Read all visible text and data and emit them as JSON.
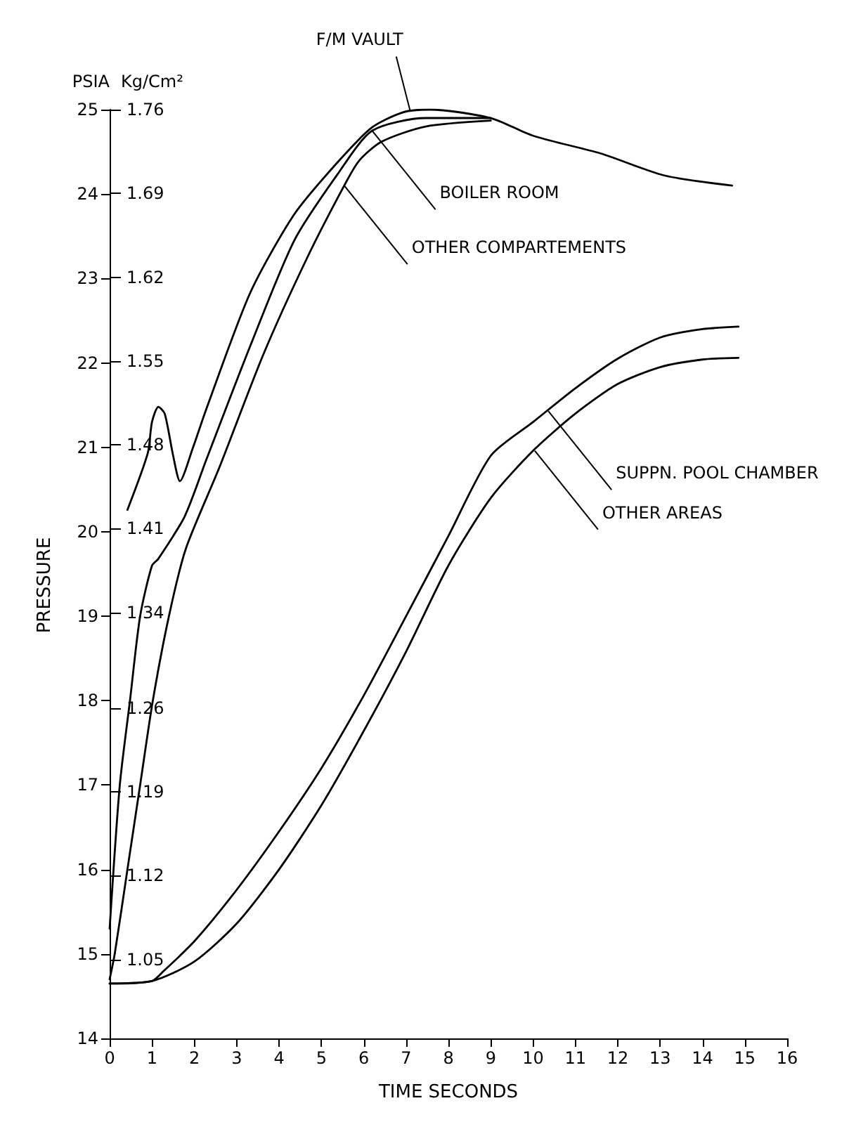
{
  "chart_data": {
    "type": "line",
    "xlabel": "TIME SECONDS",
    "ylabel": "PSIA",
    "y2label": "Kg/Cm²",
    "xlim": [
      0,
      16
    ],
    "xticks": [
      0,
      1,
      2,
      3,
      4,
      5,
      6,
      7,
      8,
      9,
      10,
      11,
      12,
      13,
      14,
      15,
      16
    ],
    "ylim": [
      14,
      25
    ],
    "yticks": [
      14,
      15,
      16,
      17,
      18,
      19,
      20,
      21,
      22,
      23,
      24,
      25
    ],
    "y2lim": [
      0.984,
      1.76
    ],
    "y2ticks": [
      1.05,
      1.12,
      1.19,
      1.26,
      1.34,
      1.41,
      1.48,
      1.55,
      1.62,
      1.69,
      1.76
    ],
    "grid": false,
    "series": [
      {
        "color": "#000000",
        "x": [
          0.42,
          0.9,
          1.0,
          1.15,
          1.3,
          1.5,
          1.66,
          1.97,
          2.28,
          3.32,
          4.36,
          5.39,
          6.2,
          6.94,
          7.56,
          9.0,
          10.0,
          11.6,
          13.1,
          14.7
        ],
        "values": [
          20.26,
          20.93,
          21.3,
          21.48,
          21.4,
          20.9,
          20.6,
          21.0,
          21.45,
          22.83,
          23.76,
          24.38,
          24.79,
          24.97,
          25.0,
          24.9,
          24.69,
          24.48,
          24.22,
          24.1
        ]
      },
      {
        "color": "#000000",
        "x": [
          0,
          0.24,
          0.48,
          0.72,
          1.0,
          1.15,
          1.77,
          2.28,
          3.32,
          4.36,
          5.39,
          6.2,
          7.46,
          9.0
        ],
        "values": [
          15.3,
          17,
          18,
          19,
          19.6,
          19.68,
          20.18,
          20.85,
          22.2,
          23.45,
          24.24,
          24.75,
          24.9,
          24.9
        ]
      },
      {
        "color": "#000000",
        "x": [
          0,
          0.12,
          0.42,
          0.72,
          1.02,
          1.4,
          1.8,
          2.59,
          3.63,
          4.66,
          5.54,
          5.9,
          6.42,
          7.46,
          9.0
        ],
        "values": [
          14.7,
          15,
          16,
          17,
          18,
          19,
          19.8,
          20.76,
          22.1,
          23.24,
          24.1,
          24.4,
          24.62,
          24.8,
          24.87
        ]
      },
      {
        "color": "#000000",
        "x": [
          0,
          1,
          1.26,
          2,
          3,
          4,
          5,
          6,
          7,
          8,
          9,
          10,
          11,
          12,
          13,
          14,
          14.85
        ],
        "values": [
          14.65,
          14.68,
          14.79,
          15.15,
          15.76,
          16.45,
          17.2,
          18.06,
          19.0,
          19.95,
          20.9,
          21.3,
          21.7,
          22.05,
          22.3,
          22.4,
          22.43
        ]
      },
      {
        "color": "#000000",
        "x": [
          0,
          1,
          2,
          3,
          4,
          5,
          6,
          7,
          8,
          9,
          10,
          11,
          12,
          13,
          14,
          14.85
        ],
        "values": [
          14.65,
          14.68,
          14.91,
          15.36,
          16.0,
          16.76,
          17.64,
          18.58,
          19.6,
          20.4,
          20.96,
          21.4,
          21.75,
          21.95,
          22.04,
          22.06
        ]
      }
    ],
    "annotations": [
      "PRESSURE",
      {
        "text": "F/M VAULT",
        "x": 7.1,
        "y": 24.98
      },
      {
        "text": "BOILER ROOM",
        "x": 6.2,
        "y": 24.75
      },
      {
        "text": "OTHER COMPARTEMENTS",
        "x": 5.54,
        "y": 24.1
      },
      {
        "text": "SUPPN. POOL CHAMBER",
        "x": 10.36,
        "y": 21.43
      },
      {
        "text": "OTHER AREAS",
        "x": 10.04,
        "y": 20.96
      }
    ]
  }
}
